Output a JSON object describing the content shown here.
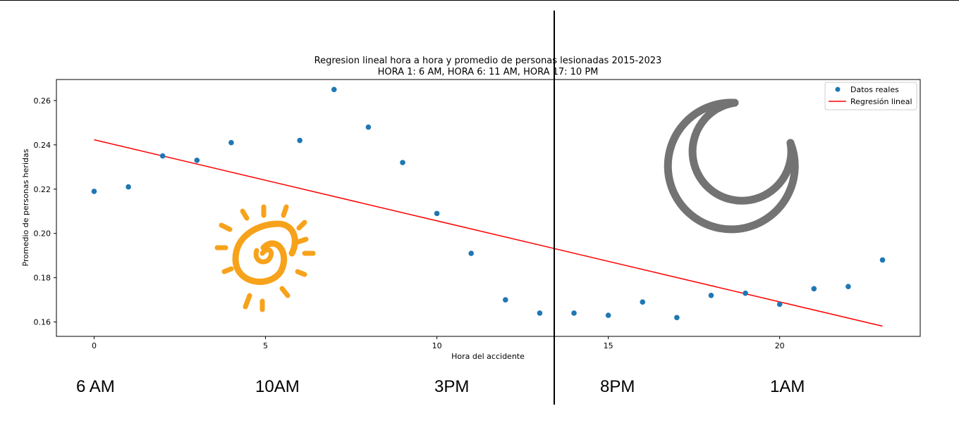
{
  "chart_data": {
    "type": "scatter",
    "title": "Regresion lineal hora a hora y promedio de personas lesionadas 2015-2023",
    "subtitle": "HORA 1: 6 AM, HORA 6: 11 AM, HORA 17: 10 PM",
    "xlabel": "Hora del accidente",
    "ylabel": "Promedio de personas heridas",
    "xlim": [
      -1.1,
      24.1
    ],
    "ylim": [
      0.1535,
      0.2695
    ],
    "x_ticks": [
      0,
      5,
      10,
      15,
      20
    ],
    "y_ticks": [
      0.16,
      0.18,
      0.2,
      0.22,
      0.24,
      0.26
    ],
    "y_tick_labels": [
      "0.16",
      "0.18",
      "0.20",
      "0.22",
      "0.24",
      "0.26"
    ],
    "grid": false,
    "legend_position": "top-right",
    "series": [
      {
        "name": "Datos reales",
        "kind": "scatter",
        "color": "#1f77b4",
        "x": [
          0,
          1,
          2,
          3,
          4,
          5,
          6,
          7,
          8,
          9,
          10,
          11,
          12,
          13,
          14,
          15,
          16,
          17,
          18,
          19,
          20,
          21,
          22,
          23
        ],
        "y": [
          0.219,
          0.221,
          0.235,
          0.233,
          0.241,
          null,
          0.242,
          0.265,
          0.248,
          0.232,
          0.209,
          0.191,
          0.17,
          0.164,
          0.164,
          0.163,
          0.169,
          0.162,
          0.172,
          0.173,
          0.168,
          0.175,
          0.176,
          0.188
        ]
      },
      {
        "name": "Regresión lineal",
        "kind": "line",
        "color": "#ff0000",
        "x": [
          0,
          23
        ],
        "y": [
          0.2423,
          0.1581
        ]
      }
    ],
    "vertical_marker_x": 13.4
  },
  "time_labels": [
    {
      "text": "6 AM"
    },
    {
      "text": "10AM"
    },
    {
      "text": "3PM"
    },
    {
      "text": "8PM"
    },
    {
      "text": "1AM"
    }
  ],
  "decorations": {
    "sun_color": "#f7a21b",
    "moon_color": "#737373",
    "sun_icon": "sun-icon",
    "moon_icon": "moon-icon"
  }
}
